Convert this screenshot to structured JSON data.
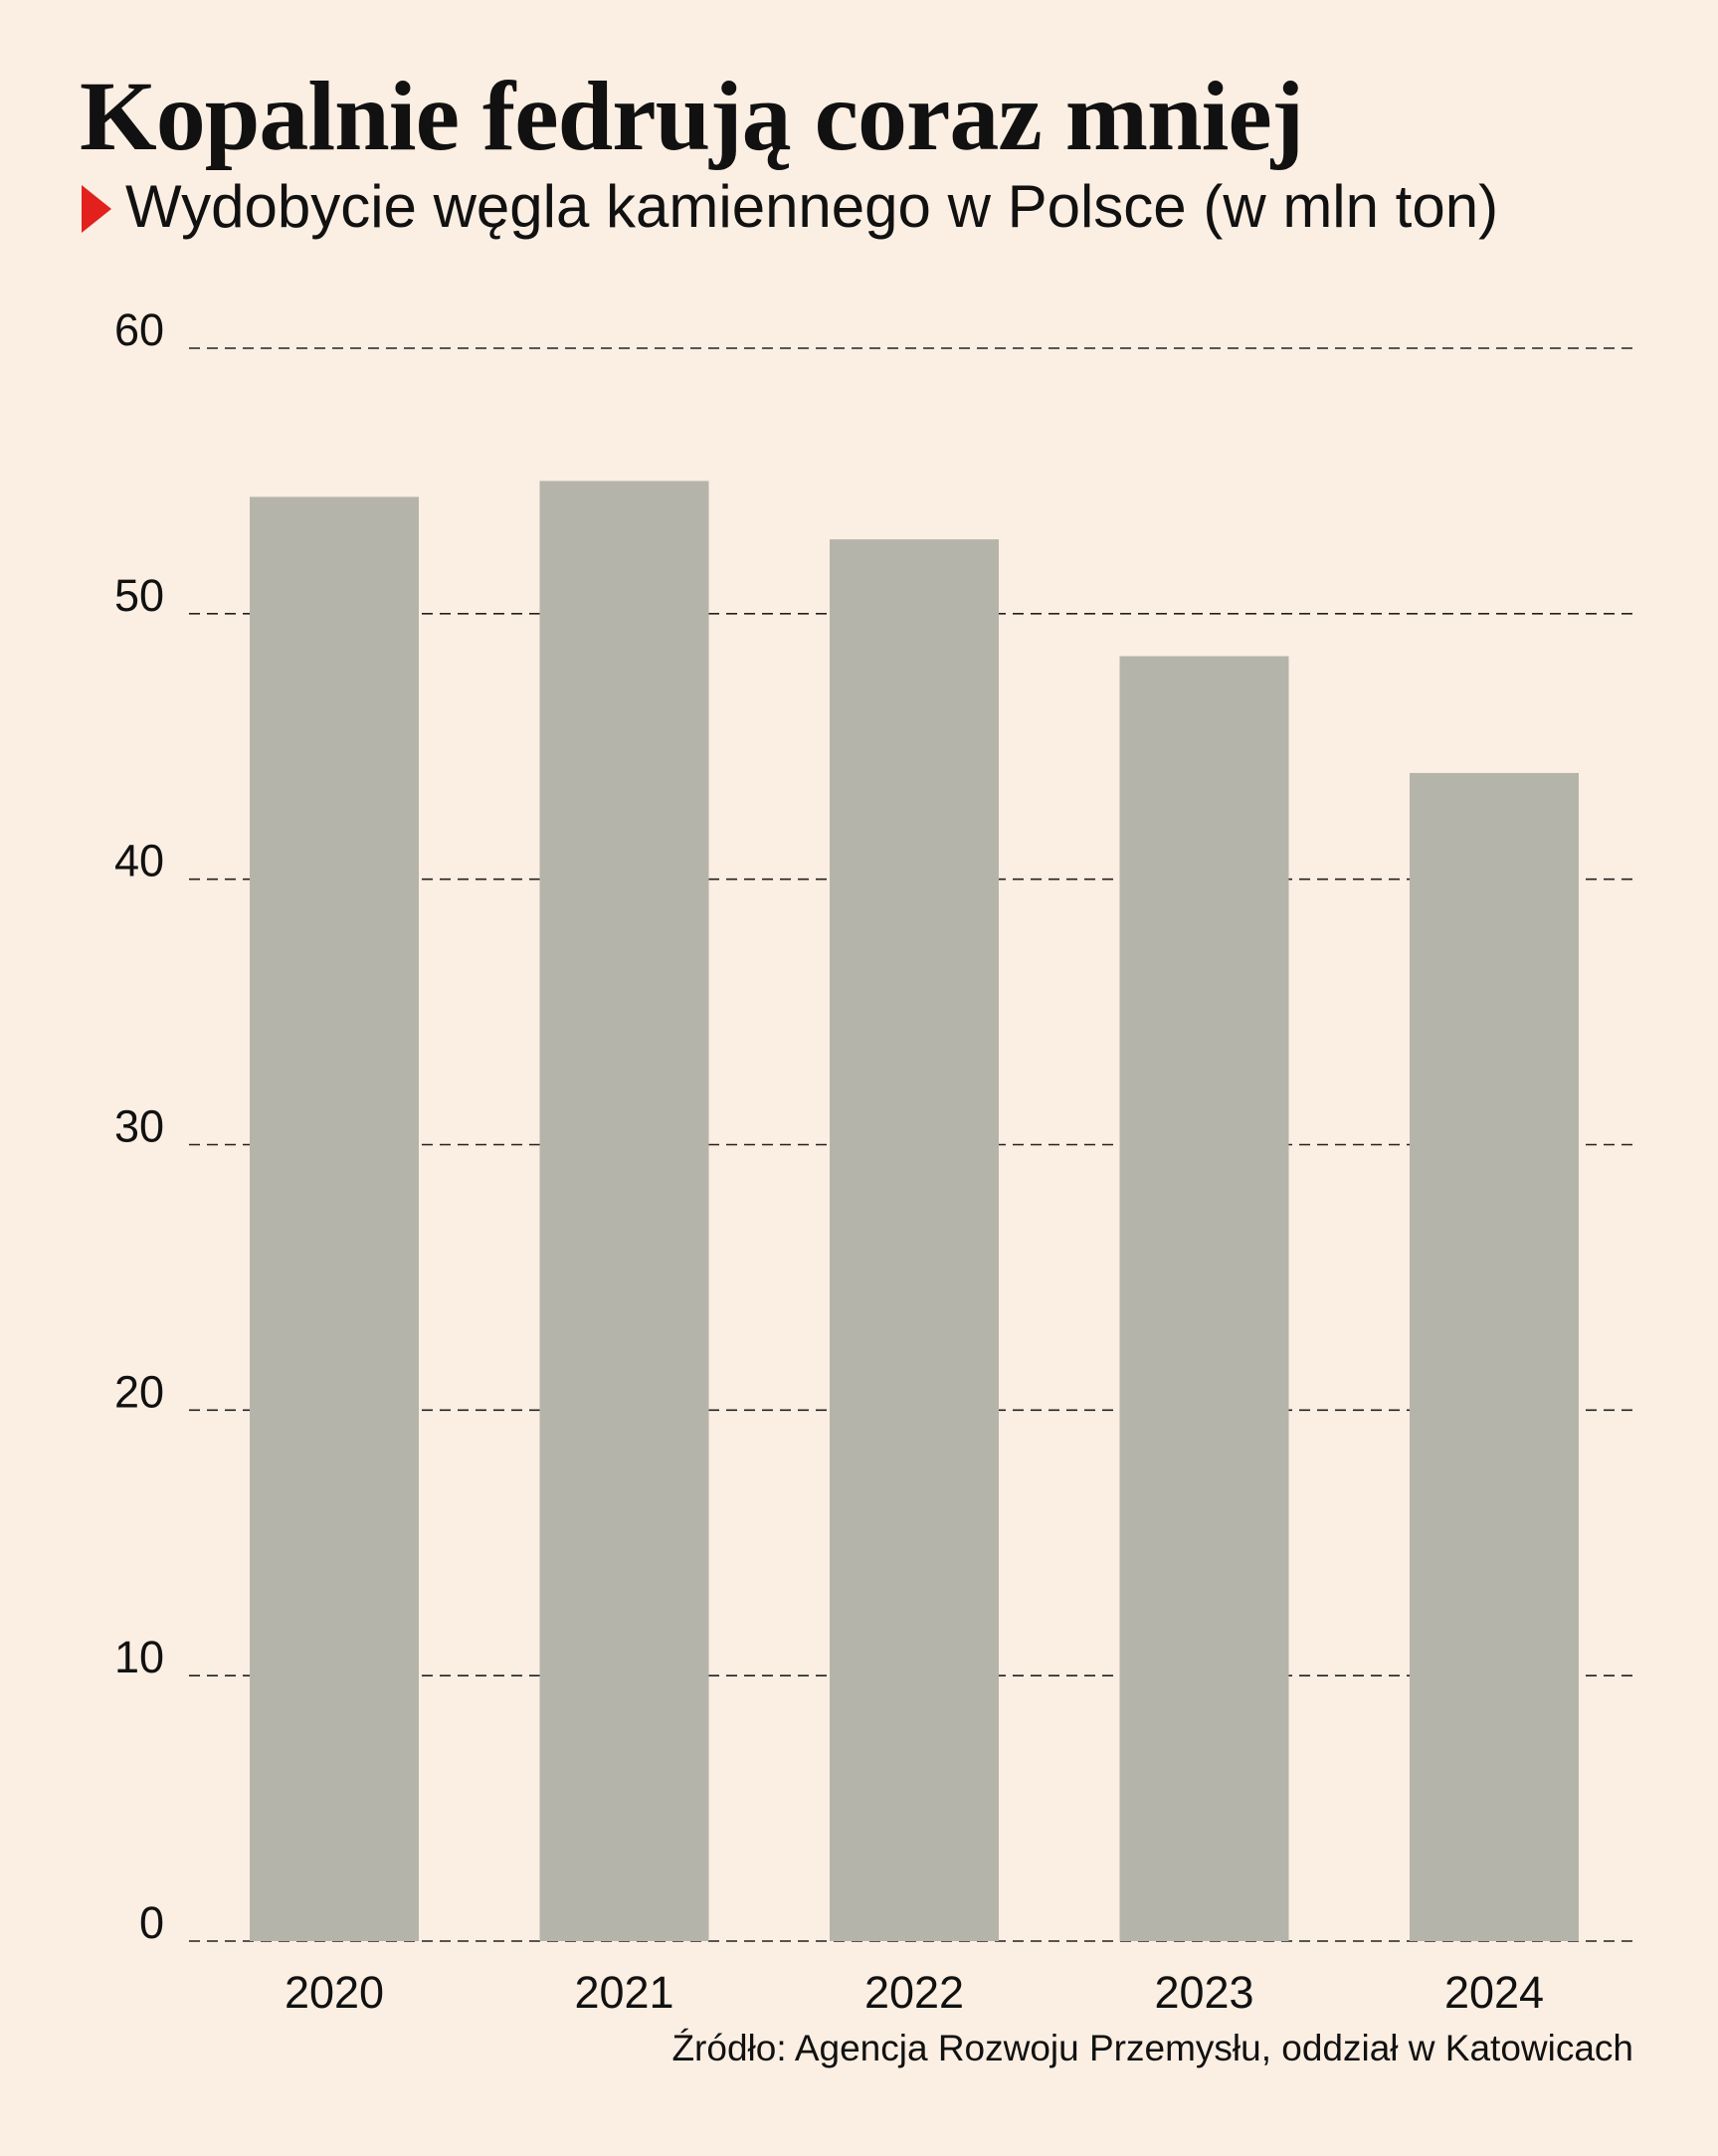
{
  "title": "Kopalnie fedrują coraz mniej",
  "subtitle": "Wydobycie węgla kamiennego w Polsce (w mln ton)",
  "source": "Źródło: Agencja Rozwoju Przemysłu, oddział w Katowicach",
  "colors": {
    "background": "#FBEEE2",
    "bar": "#B5B4AB",
    "marker": "#E2211C",
    "text": "#111111",
    "grid": "#222222"
  },
  "chart_data": {
    "type": "bar",
    "title": "Kopalnie fedrują coraz mniej",
    "subtitle": "Wydobycie węgla kamiennego w Polsce (w mln ton)",
    "categories": [
      "2020",
      "2021",
      "2022",
      "2023",
      "2024"
    ],
    "values": [
      54.4,
      55.0,
      52.8,
      48.4,
      44.0
    ],
    "xlabel": "",
    "ylabel": "",
    "ylim": [
      0,
      60
    ],
    "yticks": [
      0,
      10,
      20,
      30,
      40,
      50,
      60
    ],
    "grid": true,
    "grid_style": "dashed",
    "legend": "none"
  }
}
